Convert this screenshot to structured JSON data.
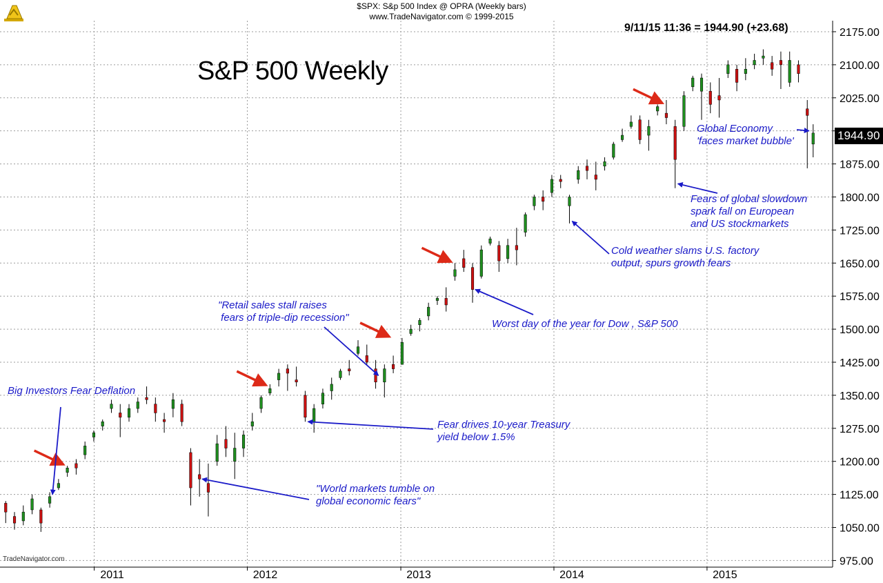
{
  "header": {
    "line1": "$SPX:  S&p 500 Index @ OPRA  (Weekly bars)",
    "line2": "www.TradeNavigator.com © 1999-2015"
  },
  "quote": "9/11/15 11:36 = 1944.90 (+23.68)",
  "big_title": "S&P 500 Weekly",
  "watermark": "TradeNavigator.com",
  "chart_data": {
    "type": "candlestick",
    "title": "S&P 500 Weekly",
    "x_start": "2010-06",
    "x_end": "2015-09",
    "x_tick_labels": [
      "2011",
      "2012",
      "2013",
      "2014",
      "2015"
    ],
    "y_range": [
      975,
      2200
    ],
    "y_tick_values": [
      975,
      1050,
      1125,
      1200,
      1275,
      1350,
      1425,
      1500,
      1575,
      1650,
      1725,
      1800,
      1875,
      1950,
      2025,
      2100,
      2175
    ],
    "y_tick_labels": [
      "975.00",
      "1050.00",
      "1125.00",
      "1200.00",
      "1275.00",
      "1350.00",
      "1425.00",
      "1500.00",
      "1575.00",
      "1650.00",
      "1725.00",
      "1800.00",
      "1875.00",
      "",
      "2025.00",
      "2100.00",
      "2175.00"
    ],
    "last_price": "1944.90",
    "grid": true,
    "up_color": "#1f8f1f",
    "down_color": "#cc1111",
    "series": [
      {
        "values": [
          [
            "2010-06-04",
            1105,
            1085,
            1110,
            1060
          ],
          [
            "2010-06-25",
            1075,
            1060,
            1085,
            1045
          ],
          [
            "2010-07-16",
            1065,
            1085,
            1100,
            1055
          ],
          [
            "2010-08-06",
            1090,
            1115,
            1125,
            1080
          ],
          [
            "2010-08-27",
            1090,
            1060,
            1095,
            1040
          ],
          [
            "2010-09-17",
            1105,
            1120,
            1130,
            1095
          ],
          [
            "2010-10-08",
            1140,
            1150,
            1160,
            1135
          ],
          [
            "2010-10-29",
            1175,
            1185,
            1190,
            1165
          ],
          [
            "2010-11-19",
            1195,
            1185,
            1205,
            1170
          ],
          [
            "2010-12-10",
            1215,
            1235,
            1245,
            1205
          ],
          [
            "2010-12-31",
            1255,
            1265,
            1270,
            1245
          ],
          [
            "2011-01-21",
            1280,
            1290,
            1295,
            1270
          ],
          [
            "2011-02-11",
            1320,
            1330,
            1340,
            1310
          ],
          [
            "2011-03-04",
            1310,
            1300,
            1330,
            1255
          ],
          [
            "2011-03-25",
            1300,
            1320,
            1330,
            1290
          ],
          [
            "2011-04-15",
            1320,
            1335,
            1345,
            1310
          ],
          [
            "2011-05-06",
            1345,
            1340,
            1370,
            1330
          ],
          [
            "2011-05-27",
            1330,
            1310,
            1345,
            1290
          ],
          [
            "2011-06-17",
            1295,
            1290,
            1310,
            1265
          ],
          [
            "2011-07-08",
            1320,
            1340,
            1355,
            1300
          ],
          [
            "2011-07-29",
            1330,
            1290,
            1340,
            1280
          ],
          [
            "2011-08-19",
            1220,
            1140,
            1230,
            1100
          ],
          [
            "2011-09-09",
            1170,
            1160,
            1205,
            1120
          ],
          [
            "2011-09-30",
            1150,
            1130,
            1195,
            1075
          ],
          [
            "2011-10-21",
            1200,
            1240,
            1260,
            1190
          ],
          [
            "2011-11-11",
            1250,
            1230,
            1280,
            1210
          ],
          [
            "2011-12-02",
            1200,
            1230,
            1265,
            1160
          ],
          [
            "2011-12-23",
            1230,
            1260,
            1270,
            1210
          ],
          [
            "2012-01-13",
            1280,
            1290,
            1310,
            1270
          ],
          [
            "2012-02-03",
            1320,
            1345,
            1350,
            1310
          ],
          [
            "2012-02-24",
            1355,
            1365,
            1375,
            1350
          ],
          [
            "2012-03-16",
            1385,
            1400,
            1410,
            1370
          ],
          [
            "2012-04-06",
            1410,
            1400,
            1420,
            1360
          ],
          [
            "2012-04-27",
            1385,
            1380,
            1415,
            1370
          ],
          [
            "2012-05-18",
            1350,
            1300,
            1360,
            1290
          ],
          [
            "2012-06-08",
            1290,
            1320,
            1330,
            1265
          ],
          [
            "2012-06-29",
            1330,
            1355,
            1365,
            1320
          ],
          [
            "2012-07-20",
            1360,
            1375,
            1390,
            1340
          ],
          [
            "2012-08-10",
            1390,
            1405,
            1410,
            1385
          ],
          [
            "2012-08-31",
            1410,
            1405,
            1430,
            1395
          ],
          [
            "2012-09-21",
            1445,
            1460,
            1475,
            1440
          ],
          [
            "2012-10-12",
            1440,
            1425,
            1465,
            1420
          ],
          [
            "2012-11-02",
            1410,
            1380,
            1430,
            1365
          ],
          [
            "2012-11-23",
            1380,
            1410,
            1420,
            1345
          ],
          [
            "2012-12-14",
            1420,
            1410,
            1440,
            1400
          ],
          [
            "2013-01-04",
            1420,
            1470,
            1480,
            1420
          ],
          [
            "2013-01-25",
            1490,
            1500,
            1510,
            1485
          ],
          [
            "2013-02-15",
            1510,
            1520,
            1525,
            1495
          ],
          [
            "2013-03-08",
            1530,
            1550,
            1560,
            1520
          ],
          [
            "2013-03-29",
            1565,
            1570,
            1575,
            1555
          ],
          [
            "2013-04-19",
            1570,
            1555,
            1595,
            1540
          ],
          [
            "2013-05-10",
            1620,
            1635,
            1650,
            1610
          ],
          [
            "2013-05-31",
            1660,
            1640,
            1680,
            1630
          ],
          [
            "2013-06-21",
            1640,
            1590,
            1650,
            1560
          ],
          [
            "2013-07-12",
            1620,
            1680,
            1690,
            1615
          ],
          [
            "2013-08-02",
            1695,
            1705,
            1710,
            1690
          ],
          [
            "2013-08-23",
            1690,
            1655,
            1700,
            1630
          ],
          [
            "2013-09-13",
            1660,
            1690,
            1705,
            1650
          ],
          [
            "2013-10-04",
            1690,
            1680,
            1730,
            1645
          ],
          [
            "2013-10-25",
            1720,
            1760,
            1765,
            1710
          ],
          [
            "2013-11-15",
            1780,
            1800,
            1805,
            1770
          ],
          [
            "2013-12-06",
            1800,
            1790,
            1815,
            1770
          ],
          [
            "2013-12-27",
            1810,
            1840,
            1850,
            1800
          ],
          [
            "2014-01-17",
            1840,
            1835,
            1850,
            1820
          ],
          [
            "2014-02-07",
            1780,
            1800,
            1805,
            1740
          ],
          [
            "2014-02-28",
            1840,
            1860,
            1870,
            1830
          ],
          [
            "2014-03-21",
            1870,
            1860,
            1885,
            1840
          ],
          [
            "2014-04-11",
            1850,
            1840,
            1880,
            1815
          ],
          [
            "2014-05-02",
            1870,
            1880,
            1890,
            1860
          ],
          [
            "2014-05-23",
            1890,
            1920,
            1925,
            1885
          ],
          [
            "2014-06-13",
            1930,
            1940,
            1955,
            1925
          ],
          [
            "2014-07-04",
            1960,
            1970,
            1985,
            1955
          ],
          [
            "2014-07-25",
            1975,
            1930,
            1985,
            1920
          ],
          [
            "2014-08-15",
            1940,
            1960,
            1975,
            1905
          ],
          [
            "2014-09-05",
            1995,
            2005,
            2010,
            1985
          ],
          [
            "2014-09-26",
            1990,
            1980,
            2020,
            1965
          ],
          [
            "2014-10-17",
            1960,
            1885,
            1975,
            1820
          ],
          [
            "2014-11-07",
            1960,
            2030,
            2040,
            1950
          ],
          [
            "2014-11-28",
            2050,
            2070,
            2075,
            2040
          ],
          [
            "2014-12-19",
            2040,
            2070,
            2080,
            1975
          ],
          [
            "2015-01-09",
            2040,
            2010,
            2060,
            1990
          ],
          [
            "2015-01-30",
            2030,
            2020,
            2070,
            1980
          ],
          [
            "2015-02-20",
            2080,
            2100,
            2110,
            2070
          ],
          [
            "2015-03-13",
            2090,
            2060,
            2100,
            2040
          ],
          [
            "2015-04-03",
            2080,
            2090,
            2115,
            2065
          ],
          [
            "2015-04-24",
            2100,
            2110,
            2125,
            2090
          ],
          [
            "2015-05-15",
            2115,
            2120,
            2135,
            2100
          ],
          [
            "2015-06-05",
            2105,
            2090,
            2120,
            2075
          ],
          [
            "2015-06-26",
            2110,
            2100,
            2130,
            2045
          ],
          [
            "2015-07-17",
            2060,
            2110,
            2130,
            2050
          ],
          [
            "2015-08-07",
            2100,
            2080,
            2110,
            2060
          ],
          [
            "2015-08-28",
            2000,
            1985,
            2020,
            1865
          ],
          [
            "2015-09-11",
            1920,
            1945,
            1965,
            1890
          ]
        ]
      }
    ],
    "annotations": [
      {
        "text": "Big Investors Fear Deflation",
        "arrow_to": {
          "date": "2010-09-17",
          "price": 1125
        }
      },
      {
        "text": "\"World markets tumble on\nglobal economic fears\"",
        "arrow_to": {
          "date": "2011-09-09",
          "price": 1160
        }
      },
      {
        "text": "\"Retail sales stall raises\n fears of triple-dip recession\"",
        "arrow_to": {
          "date": "2012-11-02",
          "price": 1395
        }
      },
      {
        "text": "Fear drives 10-year Treasury\nyield below 1.5%",
        "arrow_to": {
          "date": "2012-05-18",
          "price": 1290
        }
      },
      {
        "text": "Worst day of the year for Dow , S&P 500",
        "arrow_to": {
          "date": "2013-06-21",
          "price": 1590
        }
      },
      {
        "text": "Cold weather slams U.S. factory\noutput, spurs growth fears",
        "arrow_to": {
          "date": "2014-02-07",
          "price": 1745
        }
      },
      {
        "text": "Fears of global slowdown\nspark fall on European\nand US stockmarkets",
        "arrow_to": {
          "date": "2014-10-17",
          "price": 1830
        }
      },
      {
        "text": "Global Economy\n'faces market bubble'",
        "arrow_to": {
          "date": "2015-09-11",
          "price": 1950
        }
      }
    ],
    "highlight_arrows": [
      {
        "date": "2010-10-29",
        "price": 1190
      },
      {
        "date": "2012-02-24",
        "price": 1370
      },
      {
        "date": "2012-12-14",
        "price": 1480
      },
      {
        "date": "2013-05-10",
        "price": 1650
      },
      {
        "date": "2014-09-26",
        "price": 2010
      }
    ]
  }
}
